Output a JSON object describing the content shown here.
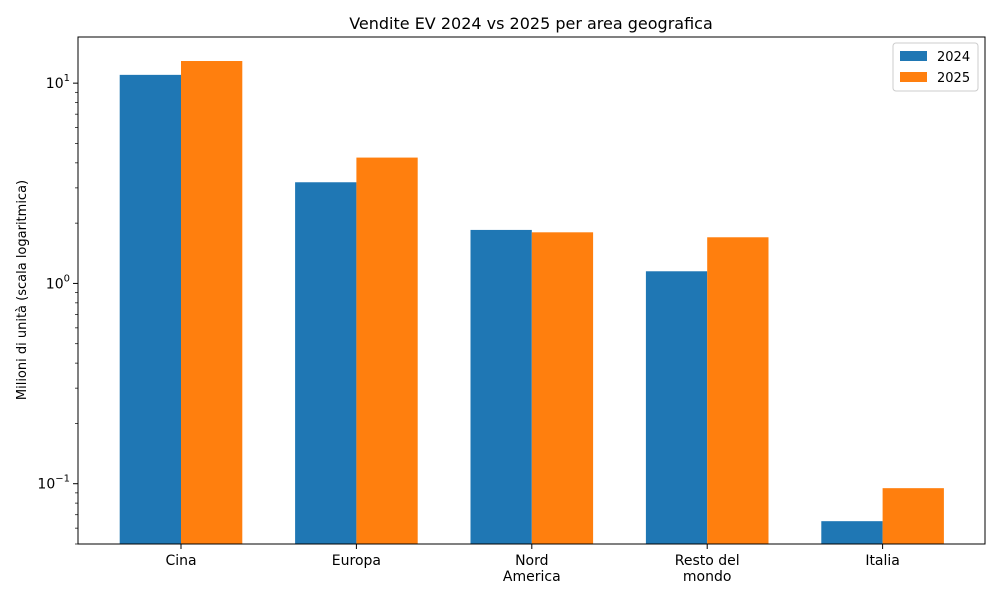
{
  "chart_data": {
    "type": "bar",
    "title": "Vendite EV 2024 vs 2025 per area geografica",
    "xlabel": "",
    "ylabel": "Milioni di unità (scala logaritmica)",
    "yscale": "log",
    "ylim": [
      0.05,
      17
    ],
    "categories": [
      [
        "Cina"
      ],
      [
        "Europa"
      ],
      [
        "Nord",
        "America"
      ],
      [
        "Resto del",
        "mondo"
      ],
      [
        "Italia"
      ]
    ],
    "series": [
      {
        "name": "2024",
        "color": "#1f77b4",
        "values": [
          11.0,
          3.2,
          1.85,
          1.15,
          0.065
        ]
      },
      {
        "name": "2025",
        "color": "#ff7f0e",
        "values": [
          12.9,
          4.25,
          1.8,
          1.7,
          0.095
        ]
      }
    ],
    "y_major_ticks": [
      {
        "value": 0.1,
        "base": "10",
        "exp": "−1"
      },
      {
        "value": 1,
        "base": "10",
        "exp": "0"
      },
      {
        "value": 10,
        "base": "10",
        "exp": "1"
      }
    ],
    "legend_position": "top-right",
    "grid": false
  }
}
